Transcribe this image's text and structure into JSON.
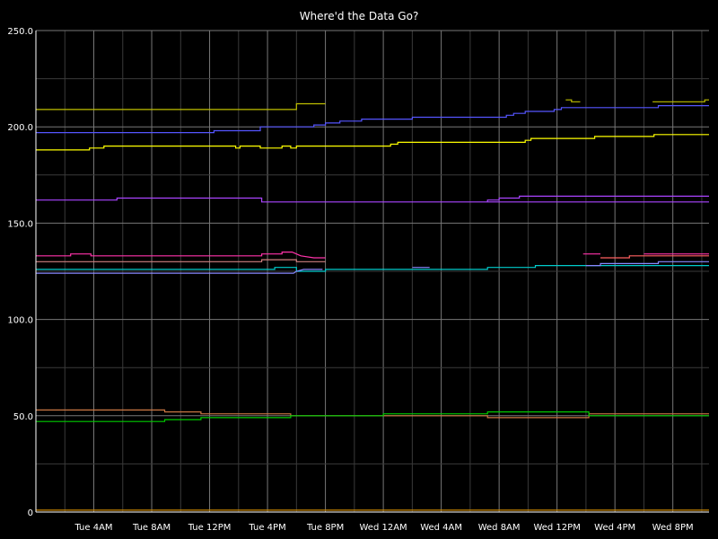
{
  "chart_data": {
    "type": "line",
    "title": "Where'd the Data Go?",
    "ylim": [
      0,
      250
    ],
    "y_ticks": [
      {
        "value": 0,
        "label": "0"
      },
      {
        "value": 50,
        "label": "50.0"
      },
      {
        "value": 100,
        "label": "100.0"
      },
      {
        "value": 150,
        "label": "150.0"
      },
      {
        "value": 200,
        "label": "200.0"
      },
      {
        "value": 250,
        "label": "250.0"
      }
    ],
    "xlim": [
      0,
      46.5
    ],
    "x_ticks": [
      {
        "x": 4,
        "label": "Tue  4AM"
      },
      {
        "x": 8,
        "label": "Tue  8AM"
      },
      {
        "x": 12,
        "label": "Tue 12PM"
      },
      {
        "x": 16,
        "label": "Tue  4PM"
      },
      {
        "x": 20,
        "label": "Tue  8PM"
      },
      {
        "x": 24,
        "label": "Wed 12AM"
      },
      {
        "x": 28,
        "label": "Wed  4AM"
      },
      {
        "x": 32,
        "label": "Wed  8AM"
      },
      {
        "x": 36,
        "label": "Wed 12PM"
      },
      {
        "x": 40,
        "label": "Wed  4PM"
      },
      {
        "x": 44,
        "label": "Wed  8PM"
      }
    ],
    "grid": true,
    "background": "#000000",
    "grid_color": "#555555",
    "axis_color": "#ffffff",
    "series": [
      {
        "color": "#bfbf00",
        "points": [
          [
            0,
            209
          ],
          [
            18,
            209
          ],
          [
            18,
            212
          ],
          [
            20,
            212
          ]
        ]
      },
      {
        "color": "#bfbf00",
        "points": [
          [
            36.6,
            214
          ],
          [
            37,
            214
          ],
          [
            37,
            213
          ],
          [
            37.6,
            213
          ]
        ]
      },
      {
        "color": "#bfbf00",
        "points": [
          [
            42.6,
            213
          ],
          [
            46.2,
            213
          ],
          [
            46.2,
            214
          ],
          [
            46.5,
            214
          ]
        ]
      },
      {
        "color": "#5555ff",
        "points": [
          [
            0,
            197
          ],
          [
            12.3,
            197
          ],
          [
            12.3,
            198
          ],
          [
            15.5,
            198
          ],
          [
            15.5,
            200
          ],
          [
            19.2,
            200
          ],
          [
            19.2,
            201
          ],
          [
            20,
            201
          ],
          [
            20,
            202
          ],
          [
            21,
            202
          ],
          [
            21,
            203
          ],
          [
            22.5,
            203
          ],
          [
            22.5,
            204
          ],
          [
            26,
            204
          ],
          [
            26,
            205
          ],
          [
            32.5,
            205
          ],
          [
            32.5,
            206
          ],
          [
            33,
            206
          ],
          [
            33,
            207
          ],
          [
            33.8,
            207
          ],
          [
            33.8,
            208
          ],
          [
            35.8,
            208
          ],
          [
            35.8,
            209
          ],
          [
            36.3,
            209
          ],
          [
            36.3,
            210
          ],
          [
            43,
            210
          ],
          [
            43,
            211
          ],
          [
            46.5,
            211
          ]
        ]
      },
      {
        "color": "#ffff00",
        "points": [
          [
            0,
            188
          ],
          [
            3.7,
            188
          ],
          [
            3.7,
            189
          ],
          [
            4.7,
            189
          ],
          [
            4.7,
            190
          ],
          [
            13.8,
            190
          ],
          [
            13.8,
            189
          ],
          [
            14.1,
            189
          ],
          [
            14.1,
            190
          ],
          [
            15.5,
            190
          ],
          [
            15.5,
            189
          ],
          [
            17,
            189
          ],
          [
            17,
            190
          ],
          [
            17.6,
            190
          ],
          [
            17.6,
            189
          ],
          [
            18,
            189
          ],
          [
            18,
            190
          ],
          [
            24.5,
            190
          ],
          [
            24.5,
            191
          ],
          [
            25,
            191
          ],
          [
            25,
            192
          ],
          [
            33.8,
            192
          ],
          [
            33.8,
            193
          ],
          [
            34.2,
            193
          ],
          [
            34.2,
            194
          ],
          [
            38.6,
            194
          ],
          [
            38.6,
            195
          ],
          [
            42.7,
            195
          ],
          [
            42.7,
            196
          ],
          [
            46.5,
            196
          ]
        ]
      },
      {
        "color": "#aa44ff",
        "points": [
          [
            0,
            162
          ],
          [
            5.6,
            162
          ],
          [
            5.6,
            163
          ],
          [
            15.6,
            163
          ],
          [
            15.6,
            161
          ],
          [
            46.5,
            161
          ]
        ]
      },
      {
        "color": "#aa44ff",
        "points": [
          [
            31.2,
            161
          ],
          [
            31.2,
            162
          ],
          [
            32,
            162
          ],
          [
            32,
            163
          ],
          [
            33.4,
            163
          ],
          [
            33.4,
            164
          ],
          [
            46.5,
            164
          ]
        ]
      },
      {
        "color": "#ff33aa",
        "points": [
          [
            0,
            133
          ],
          [
            2.4,
            133
          ],
          [
            2.4,
            134
          ],
          [
            3.8,
            134
          ],
          [
            3.8,
            133
          ],
          [
            15.6,
            133
          ],
          [
            15.6,
            134
          ],
          [
            17,
            134
          ],
          [
            17,
            135
          ],
          [
            17.7,
            135
          ],
          [
            18,
            134
          ],
          [
            18.3,
            133
          ],
          [
            19.2,
            132
          ],
          [
            20,
            132
          ]
        ]
      },
      {
        "color": "#ff33aa",
        "points": [
          [
            37.8,
            134
          ],
          [
            39,
            134
          ]
        ]
      },
      {
        "color": "#ff33aa",
        "points": [
          [
            42,
            134
          ],
          [
            46.5,
            134
          ]
        ]
      },
      {
        "color": "#ff6060",
        "points": [
          [
            39,
            132
          ],
          [
            41,
            132
          ],
          [
            41,
            133
          ],
          [
            46.5,
            133
          ]
        ]
      },
      {
        "color": "#d08080",
        "points": [
          [
            0,
            130
          ],
          [
            15.6,
            130
          ],
          [
            15.6,
            131
          ],
          [
            18,
            131
          ],
          [
            18,
            130
          ],
          [
            20,
            130
          ]
        ]
      },
      {
        "color": "#00cccc",
        "points": [
          [
            0,
            126
          ],
          [
            16.5,
            126
          ],
          [
            16.5,
            127
          ],
          [
            18,
            127
          ],
          [
            18,
            125
          ],
          [
            20,
            125
          ],
          [
            20,
            126
          ],
          [
            31.2,
            126
          ],
          [
            31.2,
            127
          ],
          [
            34.5,
            127
          ],
          [
            34.5,
            128
          ],
          [
            46.5,
            128
          ]
        ]
      },
      {
        "color": "#8888ff",
        "points": [
          [
            0,
            124
          ],
          [
            17.8,
            124
          ],
          [
            18,
            125
          ],
          [
            18.5,
            126
          ],
          [
            19.8,
            126
          ]
        ]
      },
      {
        "color": "#8888ff",
        "points": [
          [
            26,
            127
          ],
          [
            27.2,
            127
          ]
        ]
      },
      {
        "color": "#8888ff",
        "points": [
          [
            38,
            128
          ],
          [
            39,
            128
          ],
          [
            39,
            129
          ],
          [
            43,
            129
          ],
          [
            43,
            130
          ],
          [
            46.5,
            130
          ]
        ]
      },
      {
        "color": "#cc7744",
        "points": [
          [
            0,
            53
          ],
          [
            8.9,
            53
          ],
          [
            8.9,
            52
          ],
          [
            11.4,
            52
          ],
          [
            11.4,
            51
          ],
          [
            17.6,
            51
          ],
          [
            17.6,
            50
          ],
          [
            31.2,
            50
          ],
          [
            31.2,
            49
          ],
          [
            38.2,
            49
          ],
          [
            38.2,
            51
          ],
          [
            46.5,
            51
          ]
        ]
      },
      {
        "color": "#00cc00",
        "points": [
          [
            0,
            47
          ],
          [
            8.9,
            47
          ],
          [
            8.9,
            48
          ],
          [
            11.4,
            48
          ],
          [
            11.4,
            49
          ],
          [
            17.6,
            49
          ],
          [
            17.6,
            50
          ],
          [
            24,
            50
          ],
          [
            24,
            51
          ],
          [
            31.2,
            51
          ],
          [
            31.2,
            52
          ],
          [
            38.2,
            52
          ],
          [
            38.2,
            50
          ],
          [
            46.5,
            50
          ]
        ]
      },
      {
        "color": "#cc8800",
        "points": [
          [
            0,
            1
          ],
          [
            46.5,
            1
          ]
        ]
      }
    ]
  }
}
